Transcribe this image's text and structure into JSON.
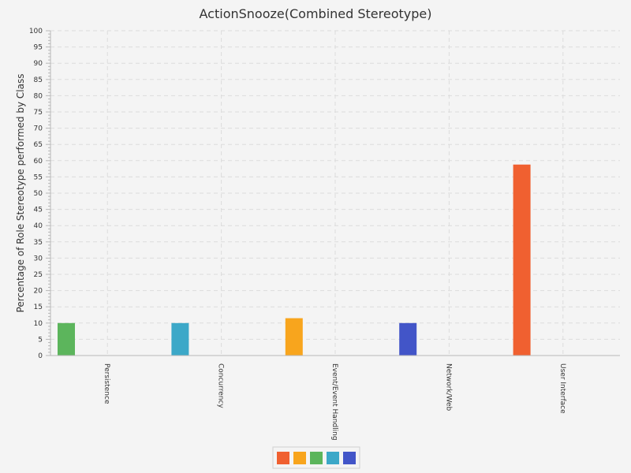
{
  "chart_data": {
    "type": "bar",
    "title": "ActionSnooze(Combined Stereotype)",
    "xlabel": "",
    "ylabel": "Percentage of Role Stereotype performed by Class",
    "ylim": [
      0,
      100
    ],
    "yticks": [
      0,
      5,
      10,
      15,
      20,
      25,
      30,
      35,
      40,
      45,
      50,
      55,
      60,
      65,
      70,
      75,
      80,
      85,
      90,
      95,
      100
    ],
    "categories": [
      "Persistence",
      "Concurrency",
      "Event/Event Handling",
      "Network/Web",
      "User Interface"
    ],
    "series": [
      {
        "color": "#f06030",
        "values": [
          0,
          0,
          0,
          0,
          58.8
        ]
      },
      {
        "color": "#f8a51d",
        "values": [
          0,
          0,
          11.5,
          0,
          0
        ]
      },
      {
        "color": "#5cb55c",
        "values": [
          10,
          0,
          0,
          0,
          0
        ]
      },
      {
        "color": "#3ca8c8",
        "values": [
          0,
          10,
          0,
          0,
          0
        ]
      },
      {
        "color": "#4255c8",
        "values": [
          0,
          0,
          0,
          10,
          0
        ]
      }
    ],
    "grid": true,
    "legend": "bottom"
  }
}
